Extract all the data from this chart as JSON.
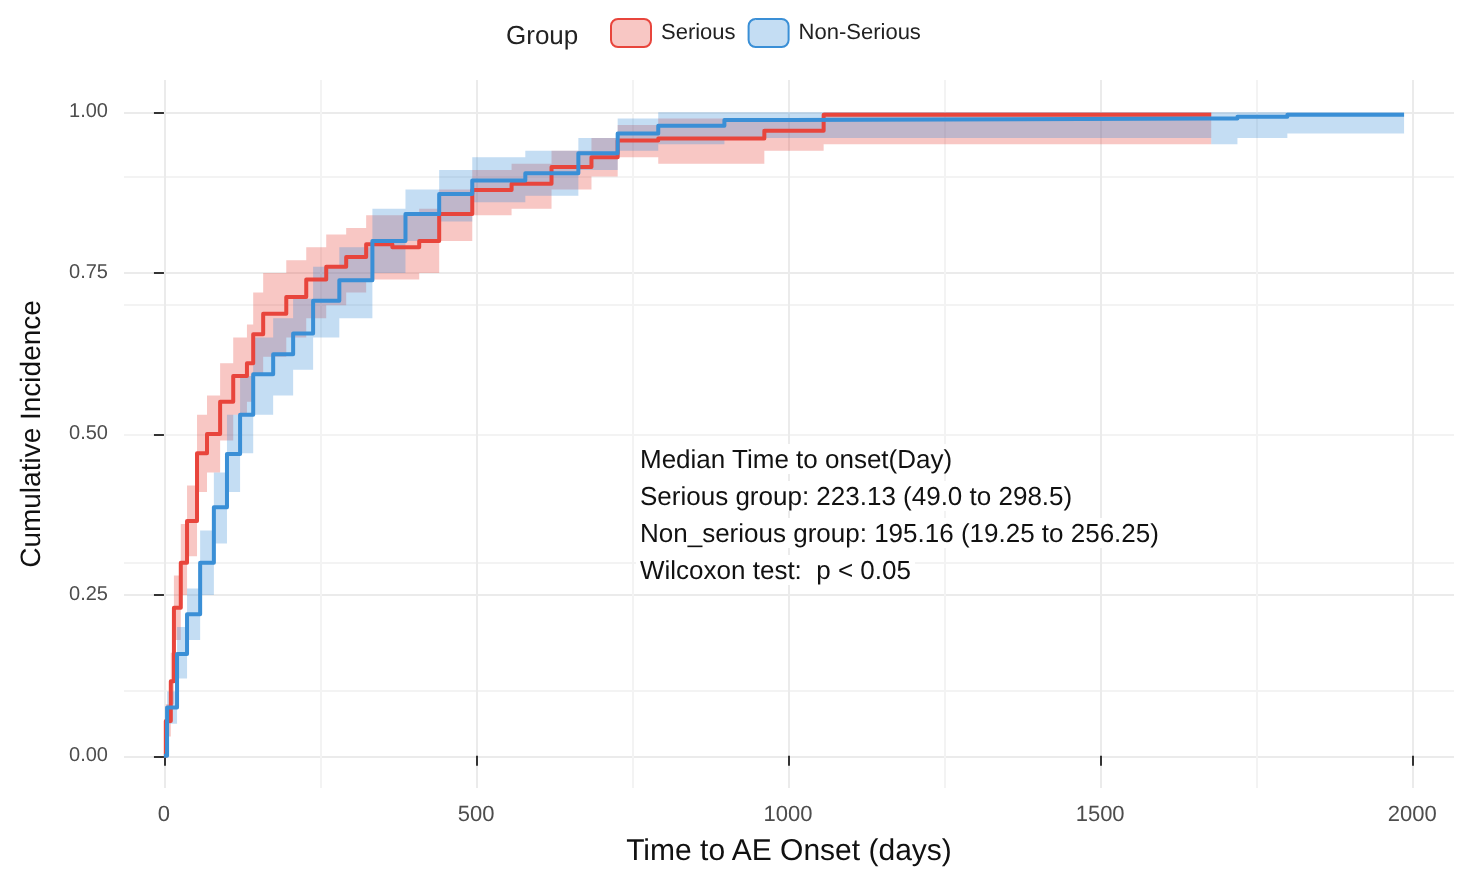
{
  "chart_data": {
    "type": "step",
    "xlabel": "Time to AE Onset (days)",
    "ylabel": "Cumulative Incidence",
    "legend_title": "Group",
    "legend": "top",
    "grid": true,
    "line_style": "solid",
    "marker": "none",
    "xlim": [
      -64,
      2067
    ],
    "xticks": [
      0,
      500,
      1000,
      1500,
      2000
    ],
    "ylim": [
      -0.05,
      1.05
    ],
    "yticks": [
      {
        "value": 0,
        "label": "0.00"
      },
      {
        "value": 0.25,
        "label": "0.25"
      },
      {
        "value": 0.5,
        "label": "0.50"
      },
      {
        "value": 0.75,
        "label": "0.75"
      },
      {
        "value": 1,
        "label": "1.00"
      }
    ],
    "annotations": [
      "Median Time to onset(Day)",
      "Serious group: 223.13 (49.0 to 298.5)",
      "Non_serious group: 195.16 (19.25 to 256.25)",
      "Wilcoxon test:  p < 0.05"
    ],
    "series": [
      {
        "name": "Serious",
        "color": "#e8453c",
        "x": [
          0,
          3,
          11,
          16,
          27,
          37,
          53,
          69,
          90,
          111,
          133,
          143,
          159,
          196,
          228,
          260,
          292,
          324,
          366,
          409,
          441,
          494,
          557,
          621,
          685,
          727,
          792,
          962,
          1057,
          1678
        ],
        "values": [
          0,
          0.054,
          0.116,
          0.23,
          0.3,
          0.365,
          0.47,
          0.5,
          0.55,
          0.59,
          0.61,
          0.655,
          0.687,
          0.713,
          0.74,
          0.76,
          0.775,
          0.795,
          0.79,
          0.8,
          0.842,
          0.879,
          0.889,
          0.915,
          0.93,
          0.956,
          0.959,
          0.971,
          0.996,
          0.996
        ],
        "lower": [
          0,
          0.03,
          0.08,
          0.18,
          0.25,
          0.31,
          0.41,
          0.44,
          0.49,
          0.53,
          0.55,
          0.59,
          0.62,
          0.65,
          0.68,
          0.7,
          0.72,
          0.74,
          0.74,
          0.75,
          0.8,
          0.84,
          0.85,
          0.88,
          0.9,
          0.93,
          0.92,
          0.94,
          0.95,
          0.95
        ],
        "upper": [
          0,
          0.08,
          0.16,
          0.28,
          0.36,
          0.42,
          0.53,
          0.56,
          0.61,
          0.65,
          0.67,
          0.72,
          0.75,
          0.77,
          0.79,
          0.81,
          0.82,
          0.84,
          0.84,
          0.85,
          0.88,
          0.91,
          0.92,
          0.94,
          0.96,
          0.98,
          0.99,
          0.99,
          1,
          1
        ]
      },
      {
        "name": "Non-Serious",
        "color": "#3a8fd6",
        "x": [
          0,
          5,
          21,
          37,
          58,
          80,
          101,
          122,
          143,
          175,
          207,
          239,
          281,
          334,
          387,
          441,
          494,
          579,
          664,
          727,
          792,
          898,
          1004,
          1678,
          1720,
          1800,
          1987
        ],
        "values": [
          0,
          0.075,
          0.158,
          0.22,
          0.3,
          0.386,
          0.469,
          0.53,
          0.593,
          0.624,
          0.656,
          0.707,
          0.739,
          0.8,
          0.842,
          0.873,
          0.894,
          0.905,
          0.936,
          0.967,
          0.979,
          0.988,
          0.99,
          0.99,
          0.993,
          0.996,
          0.996
        ],
        "lower": [
          0,
          0.05,
          0.12,
          0.18,
          0.25,
          0.33,
          0.41,
          0.47,
          0.53,
          0.56,
          0.6,
          0.65,
          0.68,
          0.75,
          0.8,
          0.83,
          0.86,
          0.87,
          0.91,
          0.94,
          0.95,
          0.96,
          0.96,
          0.95,
          0.96,
          0.967,
          0.967
        ],
        "upper": [
          0,
          0.1,
          0.2,
          0.26,
          0.35,
          0.44,
          0.53,
          0.59,
          0.65,
          0.68,
          0.71,
          0.76,
          0.79,
          0.85,
          0.88,
          0.91,
          0.93,
          0.94,
          0.96,
          0.99,
          1,
          1,
          1,
          1,
          1,
          1,
          1
        ]
      }
    ]
  }
}
